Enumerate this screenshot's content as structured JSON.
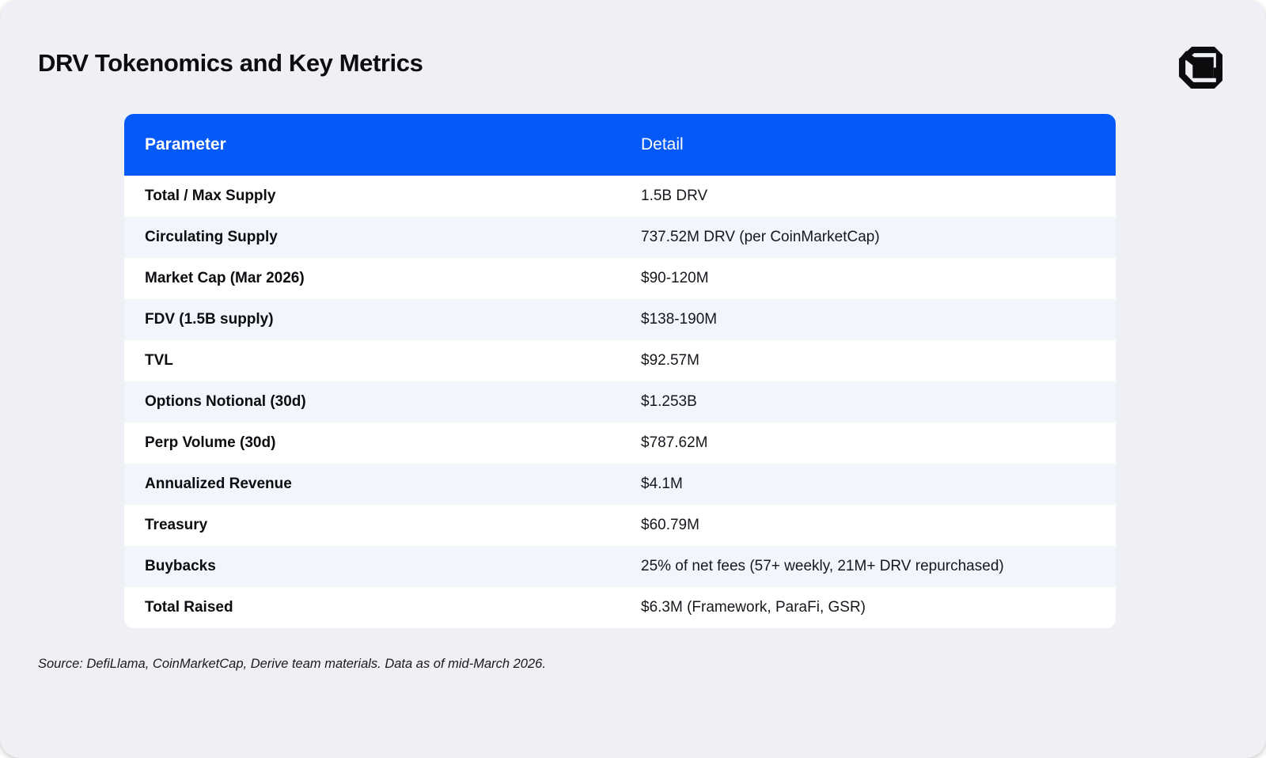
{
  "page": {
    "title": "DRV Tokenomics and Key Metrics",
    "source_note": "Source: DefiLlama, CoinMarketCap, Derive team materials. Data as of mid-March 2026."
  },
  "logo": {
    "name": "derive-brand-mark"
  },
  "colors": {
    "accent_blue": "#0459F7",
    "header_text": "#FFFFFF",
    "card_bg": "#EEF0F6",
    "row_bg": "#FFFFFF",
    "row_alt_bg": "#F1F5FC",
    "title_text": "#0C0D11",
    "body_text": "#17181D"
  },
  "table": {
    "columns": [
      {
        "key": "parameter",
        "label": "Parameter"
      },
      {
        "key": "detail",
        "label": "Detail"
      }
    ],
    "rows": [
      {
        "parameter": "Total / Max Supply",
        "detail": "1.5B DRV"
      },
      {
        "parameter": "Circulating Supply",
        "detail": "737.52M DRV (per CoinMarketCap)"
      },
      {
        "parameter": "Market Cap (Mar 2026)",
        "detail": "$90-120M"
      },
      {
        "parameter": "FDV (1.5B supply)",
        "detail": "$138-190M"
      },
      {
        "parameter": "TVL",
        "detail": "$92.57M"
      },
      {
        "parameter": "Options Notional (30d)",
        "detail": "$1.253B"
      },
      {
        "parameter": "Perp Volume (30d)",
        "detail": "$787.62M"
      },
      {
        "parameter": "Annualized Revenue",
        "detail": "$4.1M"
      },
      {
        "parameter": "Treasury",
        "detail": "$60.79M"
      },
      {
        "parameter": "Buybacks",
        "detail": "25% of net fees (57+ weekly, 21M+ DRV repurchased)"
      },
      {
        "parameter": "Total Raised",
        "detail": "$6.3M (Framework, ParaFi, GSR)"
      }
    ]
  },
  "chart_data": {
    "type": "table",
    "title": "DRV Tokenomics and Key Metrics",
    "columns": [
      "Parameter",
      "Detail"
    ],
    "rows": [
      [
        "Total / Max Supply",
        "1.5B DRV"
      ],
      [
        "Circulating Supply",
        "737.52M DRV (per CoinMarketCap)"
      ],
      [
        "Market Cap (Mar 2026)",
        "$90-120M"
      ],
      [
        "FDV (1.5B supply)",
        "$138-190M"
      ],
      [
        "TVL",
        "$92.57M"
      ],
      [
        "Options Notional (30d)",
        "$1.253B"
      ],
      [
        "Perp Volume (30d)",
        "$787.62M"
      ],
      [
        "Annualized Revenue",
        "$4.1M"
      ],
      [
        "Treasury",
        "$60.79M"
      ],
      [
        "Buybacks",
        "25% of net fees (57+ weekly, 21M+ DRV repurchased)"
      ],
      [
        "Total Raised",
        "$6.3M (Framework, ParaFi, GSR)"
      ]
    ],
    "source": "Source: DefiLlama, CoinMarketCap, Derive team materials. Data as of mid-March 2026."
  }
}
